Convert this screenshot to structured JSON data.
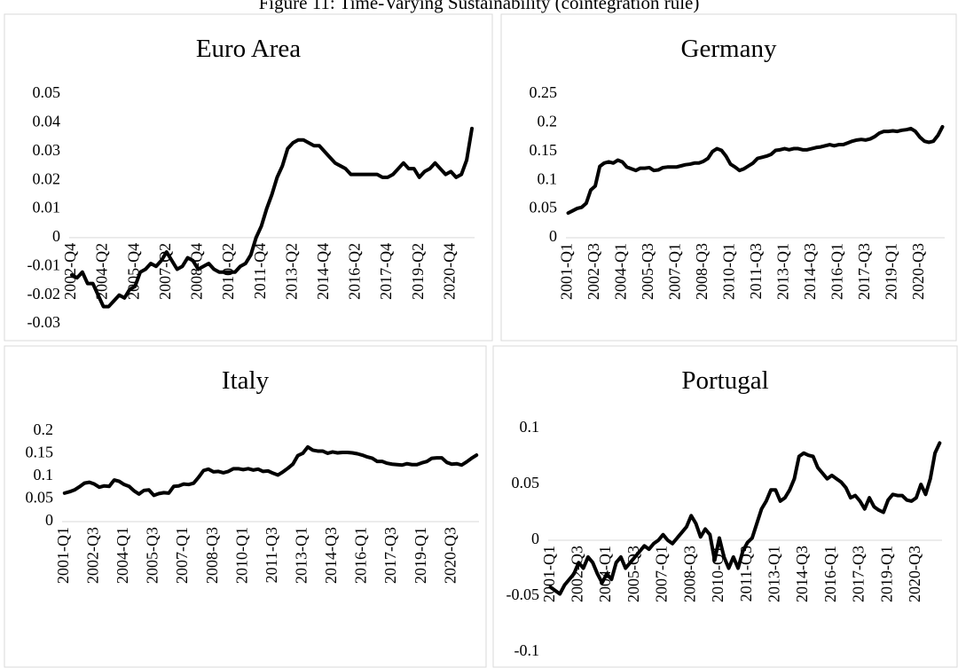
{
  "title": "Figure 11: Time-Varying Sustainability (cointegration rule)",
  "chart_data": [
    {
      "type": "line",
      "title": "Euro Area",
      "color": "#000000",
      "categories": [
        "2002-Q4",
        null,
        null,
        null,
        null,
        null,
        "2004-Q2",
        null,
        null,
        null,
        null,
        null,
        "2005-Q4",
        null,
        null,
        null,
        null,
        null,
        "2007-Q2",
        null,
        null,
        null,
        null,
        null,
        "2008-Q4",
        null,
        null,
        null,
        null,
        null,
        "2010-Q2",
        null,
        null,
        null,
        null,
        null,
        "2011-Q4",
        null,
        null,
        null,
        null,
        null,
        "2013-Q2",
        null,
        null,
        null,
        null,
        null,
        "2014-Q4",
        null,
        null,
        null,
        null,
        null,
        "2016-Q2",
        null,
        null,
        null,
        null,
        null,
        "2017-Q4",
        null,
        null,
        null,
        null,
        null,
        "2019-Q2",
        null,
        null,
        null,
        null,
        null,
        "2020-Q4",
        null,
        null,
        null,
        null
      ],
      "values": [
        -0.013,
        -0.014,
        -0.012,
        -0.016,
        -0.016,
        -0.02,
        -0.024,
        -0.024,
        -0.022,
        -0.02,
        -0.021,
        -0.018,
        -0.017,
        -0.012,
        -0.011,
        -0.009,
        -0.01,
        -0.008,
        -0.005,
        -0.008,
        -0.011,
        -0.01,
        -0.007,
        -0.008,
        -0.011,
        -0.01,
        -0.009,
        -0.011,
        -0.012,
        -0.012,
        -0.012,
        -0.012,
        -0.01,
        -0.009,
        -0.006,
        0.0,
        0.004,
        0.01,
        0.015,
        0.021,
        0.025,
        0.031,
        0.033,
        0.034,
        0.034,
        0.033,
        0.032,
        0.032,
        0.03,
        0.028,
        0.026,
        0.025,
        0.024,
        0.022,
        0.022,
        0.022,
        0.022,
        0.022,
        0.022,
        0.021,
        0.021,
        0.022,
        0.024,
        0.026,
        0.024,
        0.024,
        0.021,
        0.023,
        0.024,
        0.026,
        0.024,
        0.022,
        0.023,
        0.021,
        0.022,
        0.027,
        0.038
      ],
      "ylim": [
        -0.03,
        0.05
      ],
      "yticks": [
        -0.03,
        -0.02,
        -0.01,
        0,
        0.01,
        0.02,
        0.03,
        0.04,
        0.05
      ]
    },
    {
      "type": "line",
      "title": "Germany",
      "color": "#000000",
      "categories": [
        "2001-Q1",
        null,
        null,
        null,
        null,
        null,
        "2002-Q3",
        null,
        null,
        null,
        null,
        null,
        "2004-Q1",
        null,
        null,
        null,
        null,
        null,
        "2005-Q3",
        null,
        null,
        null,
        null,
        null,
        "2007-Q1",
        null,
        null,
        null,
        null,
        null,
        "2008-Q3",
        null,
        null,
        null,
        null,
        null,
        "2010-Q1",
        null,
        null,
        null,
        null,
        null,
        "2011-Q3",
        null,
        null,
        null,
        null,
        null,
        "2013-Q1",
        null,
        null,
        null,
        null,
        null,
        "2014-Q3",
        null,
        null,
        null,
        null,
        null,
        "2016-Q1",
        null,
        null,
        null,
        null,
        null,
        "2017-Q3",
        null,
        null,
        null,
        null,
        null,
        "2019-Q1",
        null,
        null,
        null,
        null,
        null,
        "2020-Q3",
        null,
        null,
        null,
        null,
        null
      ],
      "values": [
        0.043,
        0.047,
        0.051,
        0.053,
        0.06,
        0.083,
        0.09,
        0.124,
        0.13,
        0.132,
        0.13,
        0.135,
        0.132,
        0.123,
        0.12,
        0.117,
        0.121,
        0.121,
        0.122,
        0.117,
        0.118,
        0.122,
        0.123,
        0.123,
        0.123,
        0.125,
        0.127,
        0.128,
        0.13,
        0.13,
        0.133,
        0.138,
        0.15,
        0.155,
        0.152,
        0.142,
        0.128,
        0.123,
        0.117,
        0.12,
        0.125,
        0.13,
        0.138,
        0.14,
        0.142,
        0.145,
        0.152,
        0.153,
        0.155,
        0.153,
        0.155,
        0.155,
        0.153,
        0.153,
        0.155,
        0.157,
        0.158,
        0.16,
        0.162,
        0.16,
        0.162,
        0.162,
        0.165,
        0.168,
        0.17,
        0.171,
        0.17,
        0.172,
        0.176,
        0.182,
        0.185,
        0.185,
        0.186,
        0.185,
        0.187,
        0.188,
        0.19,
        0.185,
        0.175,
        0.168,
        0.166,
        0.168,
        0.178,
        0.193
      ],
      "ylim": [
        0,
        0.25
      ],
      "yticks": [
        0,
        0.05,
        0.1,
        0.15,
        0.2,
        0.25
      ]
    },
    {
      "type": "line",
      "title": "Italy",
      "color": "#000000",
      "categories": [
        "2001-Q1",
        null,
        null,
        null,
        null,
        null,
        "2002-Q3",
        null,
        null,
        null,
        null,
        null,
        "2004-Q1",
        null,
        null,
        null,
        null,
        null,
        "2005-Q3",
        null,
        null,
        null,
        null,
        null,
        "2007-Q1",
        null,
        null,
        null,
        null,
        null,
        "2008-Q3",
        null,
        null,
        null,
        null,
        null,
        "2010-Q1",
        null,
        null,
        null,
        null,
        null,
        "2011-Q3",
        null,
        null,
        null,
        null,
        null,
        "2013-Q1",
        null,
        null,
        null,
        null,
        null,
        "2014-Q3",
        null,
        null,
        null,
        null,
        null,
        "2016-Q1",
        null,
        null,
        null,
        null,
        null,
        "2017-Q3",
        null,
        null,
        null,
        null,
        null,
        "2019-Q1",
        null,
        null,
        null,
        null,
        null,
        "2020-Q3",
        null,
        null,
        null,
        null,
        null
      ],
      "values": [
        0.063,
        0.066,
        0.07,
        0.077,
        0.085,
        0.087,
        0.083,
        0.076,
        0.079,
        0.078,
        0.092,
        0.089,
        0.082,
        0.078,
        0.068,
        0.061,
        0.069,
        0.07,
        0.058,
        0.062,
        0.064,
        0.063,
        0.078,
        0.079,
        0.083,
        0.082,
        0.085,
        0.098,
        0.113,
        0.116,
        0.11,
        0.111,
        0.108,
        0.111,
        0.117,
        0.117,
        0.115,
        0.117,
        0.114,
        0.116,
        0.111,
        0.112,
        0.107,
        0.103,
        0.11,
        0.118,
        0.127,
        0.146,
        0.151,
        0.165,
        0.158,
        0.156,
        0.156,
        0.151,
        0.154,
        0.152,
        0.153,
        0.153,
        0.152,
        0.15,
        0.147,
        0.143,
        0.14,
        0.133,
        0.133,
        0.129,
        0.127,
        0.126,
        0.125,
        0.128,
        0.126,
        0.126,
        0.13,
        0.133,
        0.14,
        0.141,
        0.141,
        0.131,
        0.127,
        0.128,
        0.125,
        0.132,
        0.14,
        0.147
      ],
      "ylim": [
        0,
        0.2
      ],
      "yticks": [
        0,
        0.05,
        0.1,
        0.15,
        0.2
      ]
    },
    {
      "type": "line",
      "title": "Portugal",
      "color": "#000000",
      "categories": [
        "2001-Q1",
        null,
        null,
        null,
        null,
        null,
        "2002-Q3",
        null,
        null,
        null,
        null,
        null,
        "2004-Q1",
        null,
        null,
        null,
        null,
        null,
        "2005-Q3",
        null,
        null,
        null,
        null,
        null,
        "2007-Q1",
        null,
        null,
        null,
        null,
        null,
        "2008-Q3",
        null,
        null,
        null,
        null,
        null,
        "2010-Q1",
        null,
        null,
        null,
        null,
        null,
        "2011-Q3",
        null,
        null,
        null,
        null,
        null,
        "2013-Q1",
        null,
        null,
        null,
        null,
        null,
        "2014-Q3",
        null,
        null,
        null,
        null,
        null,
        "2016-Q1",
        null,
        null,
        null,
        null,
        null,
        "2017-Q3",
        null,
        null,
        null,
        null,
        null,
        "2019-Q1",
        null,
        null,
        null,
        null,
        null,
        "2020-Q3",
        null,
        null,
        null,
        null,
        null
      ],
      "values": [
        -0.042,
        -0.045,
        -0.048,
        -0.04,
        -0.035,
        -0.03,
        -0.02,
        -0.025,
        -0.015,
        -0.02,
        -0.03,
        -0.038,
        -0.03,
        -0.035,
        -0.02,
        -0.015,
        -0.025,
        -0.02,
        -0.015,
        -0.01,
        -0.005,
        -0.008,
        -0.003,
        0.0,
        0.005,
        0.0,
        -0.003,
        0.002,
        0.007,
        0.012,
        0.022,
        0.015,
        0.003,
        0.01,
        0.005,
        -0.018,
        0.002,
        -0.015,
        -0.025,
        -0.015,
        -0.025,
        -0.01,
        -0.002,
        0.002,
        0.015,
        0.028,
        0.035,
        0.045,
        0.045,
        0.035,
        0.038,
        0.045,
        0.055,
        0.075,
        0.078,
        0.076,
        0.075,
        0.065,
        0.06,
        0.055,
        0.058,
        0.055,
        0.052,
        0.047,
        0.038,
        0.04,
        0.035,
        0.028,
        0.038,
        0.03,
        0.027,
        0.025,
        0.036,
        0.041,
        0.04,
        0.04,
        0.036,
        0.035,
        0.038,
        0.05,
        0.041,
        0.055,
        0.078,
        0.087
      ],
      "ylim": [
        -0.1,
        0.1
      ],
      "yticks": [
        -0.1,
        -0.05,
        0,
        0.05,
        0.1
      ]
    }
  ]
}
